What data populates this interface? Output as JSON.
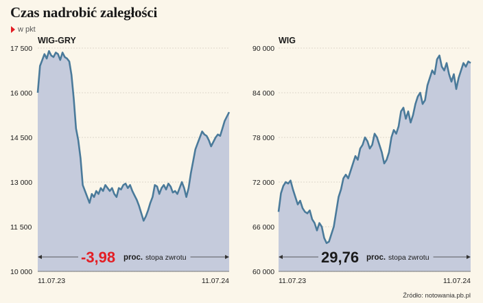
{
  "header": {
    "title": "Czas nadrobić zaległości",
    "subtitle": "w pkt"
  },
  "source": "Źródło: notowania.pb.pl",
  "colors": {
    "background": "#fbf6ea",
    "area_fill": "#c5cbdc",
    "line": "#4a7a9a",
    "negative_value": "#e31e24",
    "positive_value": "#1a1a1a"
  },
  "chart_data": [
    {
      "type": "area",
      "title": "WIG-GRY",
      "x_start": "11.07.23",
      "x_end": "11.07.24",
      "ylim": [
        10000,
        17500
      ],
      "y_ticks": [
        "17 500",
        "16 000",
        "14 500",
        "13 000",
        "11 500",
        "10 000"
      ],
      "change_value": "-3,98",
      "change_unit": "proc.",
      "change_label": "stopa zwrotu",
      "series": [
        {
          "values": [
            16000,
            16900,
            17100,
            17300,
            17150,
            17400,
            17250,
            17200,
            17350,
            17300,
            17100,
            17350,
            17200,
            17150,
            17050,
            16600,
            15800,
            14800,
            14400,
            13800,
            12900,
            12700,
            12500,
            12300,
            12600,
            12500,
            12700,
            12600,
            12800,
            12700,
            12900,
            12800,
            12700,
            12800,
            12600,
            12500,
            12800,
            12750,
            12900,
            12950,
            12800,
            12900,
            12700,
            12550,
            12400,
            12200,
            11950,
            11700,
            11850,
            12050,
            12300,
            12500,
            12900,
            12850,
            12600,
            12800,
            12900,
            12750,
            12950,
            12850,
            12650,
            12700,
            12600,
            12800,
            13000,
            12800,
            12500,
            12800,
            13300,
            13700,
            14100,
            14300,
            14500,
            14700,
            14600,
            14550,
            14400,
            14200,
            14350,
            14500,
            14600,
            14550,
            14800,
            15050,
            15200,
            15350
          ]
        }
      ]
    },
    {
      "type": "area",
      "title": "WIG",
      "x_start": "11.07.23",
      "x_end": "11.07.24",
      "ylim": [
        60000,
        90000
      ],
      "y_ticks": [
        "90 000",
        "84 000",
        "78 000",
        "72 000",
        "66 000",
        "60 000"
      ],
      "change_value": "29,76",
      "change_unit": "proc.",
      "change_label": "stopa zwrotu",
      "series": [
        {
          "values": [
            68000,
            70500,
            71500,
            72000,
            71800,
            72200,
            71000,
            70000,
            69000,
            69500,
            68500,
            68000,
            67800,
            68200,
            67000,
            66500,
            65500,
            66500,
            66000,
            64500,
            63800,
            64000,
            65000,
            66000,
            68000,
            70000,
            71000,
            72500,
            73000,
            72500,
            73500,
            74500,
            75500,
            75000,
            76500,
            77000,
            78000,
            77500,
            76500,
            77000,
            78500,
            78000,
            77000,
            76000,
            74500,
            75000,
            76000,
            78000,
            79000,
            78500,
            79500,
            81500,
            82000,
            80500,
            81500,
            80000,
            81000,
            82500,
            83500,
            84000,
            82500,
            83000,
            85000,
            86000,
            87000,
            86500,
            88500,
            89000,
            87500,
            87000,
            88000,
            86500,
            85500,
            86500,
            84500,
            86000,
            87000,
            88000,
            87500,
            88200,
            88000
          ]
        }
      ]
    }
  ]
}
